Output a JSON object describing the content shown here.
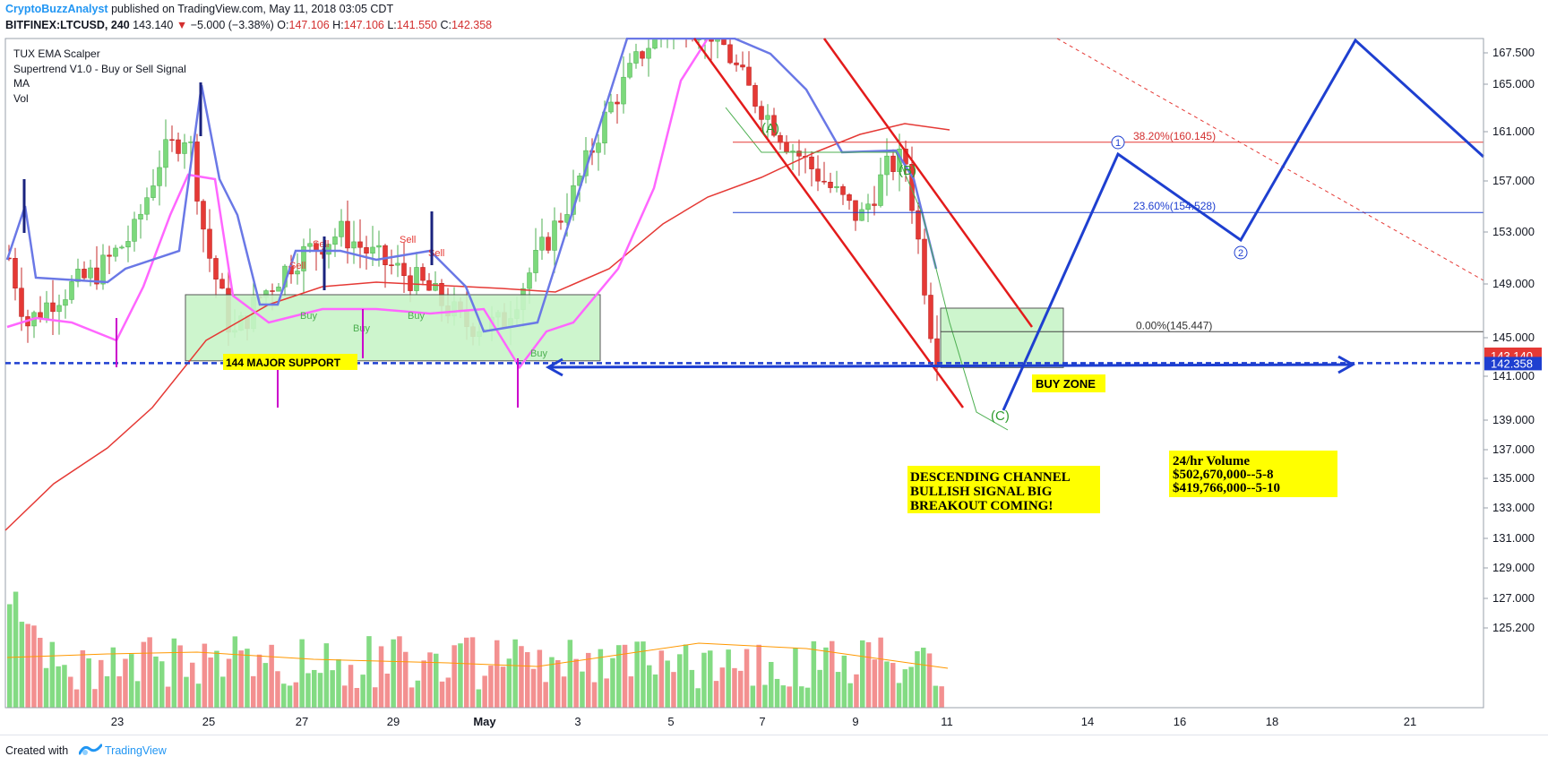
{
  "header": {
    "author": "CryptoBuzzAnalyst",
    "published": "published on TradingView.com, May 11, 2018 03:05 CDT",
    "symbol": "BITFINEX:LTCUSD, 240",
    "last": "143.140",
    "change": "−5.000 (−3.38%)",
    "o_label": "O:",
    "o": "147.106",
    "h_label": "H:",
    "h": "147.106",
    "l_label": "L:",
    "l": "141.550",
    "c_label": "C:",
    "c": "142.358"
  },
  "legend": [
    "TUX EMA Scalper",
    "Supertrend V1.0 - Buy or Sell Signal",
    "MA",
    "Vol"
  ],
  "footer": {
    "created": "Created with",
    "brand": "TradingView",
    "logo_icon": "tradingview-logo-icon"
  },
  "colors": {
    "up": "#7cd97c",
    "down": "#e53935",
    "pink": "#ff66ff",
    "supertrend": "#6a78e6",
    "ma": "#e53935",
    "projection": "#1e3fd0",
    "support_box": "#c8f5c8",
    "note_bg": "#ffff00",
    "price_tag": "#e53935"
  },
  "chart_data": {
    "type": "candlestick",
    "symbol": "BITFINEX:LTCUSD",
    "interval": "240",
    "y_axis_ticks": [
      "167.500",
      "165.000",
      "161.000",
      "157.000",
      "153.000",
      "149.000",
      "145.000",
      "141.000",
      "139.000",
      "137.000",
      "135.000",
      "133.000",
      "131.000",
      "129.000",
      "127.000",
      "125.200"
    ],
    "x_axis_ticks": [
      "23",
      "25",
      "27",
      "29",
      "May",
      "3",
      "5",
      "7",
      "9",
      "11",
      "14",
      "16",
      "18",
      "21"
    ],
    "ylim": [
      124.0,
      169.0
    ],
    "last_price_tag": "143.140",
    "close_price_tag": "142.358",
    "fib_levels": [
      {
        "label": "38.20%(160.145)",
        "value": 160.145
      },
      {
        "label": "23.60%(154.528)",
        "value": 154.528
      },
      {
        "label": "0.00%(145.447)",
        "value": 145.447
      }
    ],
    "wave_labels": [
      "(A)",
      "(B)",
      "(C)",
      "1",
      "2"
    ],
    "support_line": 142.358,
    "support_box": {
      "low": 142.6,
      "high": 148.2
    },
    "buy_zone_box": {
      "low": 141.9,
      "high": 147.2
    },
    "annotations": {
      "support": "144 MAJOR SUPPORT",
      "buy_zone": "BUY ZONE",
      "channel_note": [
        "DESCENDING CHANNEL",
        "BULLISH SIGNAL BIG",
        "BREAKOUT COMING!"
      ],
      "volume_note": [
        "24/hr Volume",
        "$502,670,000--5-8",
        "$419,766,000--5-10"
      ]
    },
    "signals": [
      "Sell",
      "Sell",
      "Sell",
      "Sell",
      "Sell",
      "Buy",
      "Buy",
      "Buy",
      "Buy"
    ]
  }
}
